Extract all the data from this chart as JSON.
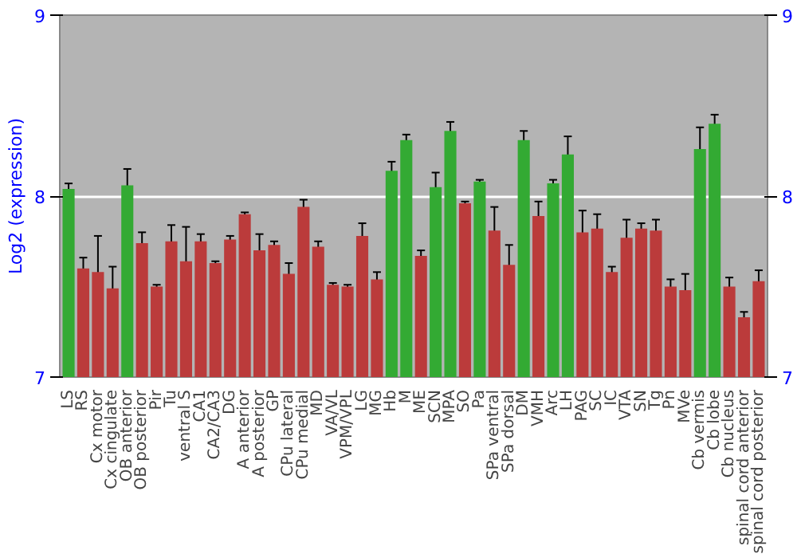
{
  "chart_data": {
    "type": "bar",
    "ylabel": "Log2 (expression)",
    "categories": [
      "LS",
      "RS",
      "Cx motor",
      "Cx cingulate",
      "OB anterior",
      "OB posterior",
      "Pir",
      "Tu",
      "ventral S",
      "CA1",
      "CA2/CA3",
      "DG",
      "A anterior",
      "A posterior",
      "GP",
      "CPu lateral",
      "CPu medial",
      "MD",
      "VA/VL",
      "VPM/VPL",
      "LG",
      "MG",
      "Hb",
      "M",
      "ME",
      "SCN",
      "MPA",
      "SO",
      "Pa",
      "SPa ventral",
      "SPa dorsal",
      "DM",
      "VMH",
      "Arc",
      "LH",
      "PAG",
      "SC",
      "IC",
      "VTA",
      "SN",
      "Tg",
      "Pn",
      "MVe",
      "Cb vermis",
      "Cb lobe",
      "Cb nucleus",
      "spinal cord anterior",
      "spinal cord posterior"
    ],
    "values": [
      8.04,
      7.6,
      7.58,
      7.49,
      8.06,
      7.74,
      7.5,
      7.75,
      7.64,
      7.75,
      7.63,
      7.76,
      7.9,
      7.7,
      7.73,
      7.57,
      7.94,
      7.72,
      7.51,
      7.5,
      7.78,
      7.54,
      8.14,
      8.31,
      7.67,
      8.05,
      8.36,
      7.96,
      8.08,
      7.81,
      7.62,
      8.31,
      7.89,
      8.07,
      8.23,
      7.8,
      7.82,
      7.58,
      7.77,
      7.82,
      7.81,
      7.5,
      7.48,
      8.26,
      8.4,
      7.5,
      7.33,
      7.53
    ],
    "errors": [
      0.03,
      0.06,
      0.2,
      0.12,
      0.09,
      0.06,
      0.01,
      0.09,
      0.19,
      0.04,
      0.01,
      0.02,
      0.01,
      0.09,
      0.02,
      0.06,
      0.04,
      0.03,
      0.01,
      0.01,
      0.07,
      0.04,
      0.05,
      0.03,
      0.03,
      0.08,
      0.05,
      0.01,
      0.01,
      0.13,
      0.11,
      0.05,
      0.08,
      0.02,
      0.1,
      0.12,
      0.08,
      0.03,
      0.1,
      0.03,
      0.06,
      0.04,
      0.09,
      0.12,
      0.05,
      0.05,
      0.03,
      0.06
    ],
    "colors": [
      "#33aa33",
      "#bb3b3b",
      "#bb3b3b",
      "#bb3b3b",
      "#33aa33",
      "#bb3b3b",
      "#bb3b3b",
      "#bb3b3b",
      "#bb3b3b",
      "#bb3b3b",
      "#bb3b3b",
      "#bb3b3b",
      "#bb3b3b",
      "#bb3b3b",
      "#bb3b3b",
      "#bb3b3b",
      "#bb3b3b",
      "#bb3b3b",
      "#bb3b3b",
      "#bb3b3b",
      "#bb3b3b",
      "#bb3b3b",
      "#33aa33",
      "#33aa33",
      "#bb3b3b",
      "#33aa33",
      "#33aa33",
      "#bb3b3b",
      "#33aa33",
      "#bb3b3b",
      "#bb3b3b",
      "#33aa33",
      "#bb3b3b",
      "#33aa33",
      "#33aa33",
      "#bb3b3b",
      "#bb3b3b",
      "#bb3b3b",
      "#bb3b3b",
      "#bb3b3b",
      "#bb3b3b",
      "#bb3b3b",
      "#bb3b3b",
      "#33aa33",
      "#33aa33",
      "#bb3b3b",
      "#bb3b3b",
      "#bb3b3b"
    ],
    "ylim": [
      7,
      9
    ],
    "yticks": [
      7,
      8,
      9
    ],
    "y2lim": [
      7,
      9
    ],
    "y2ticks": [
      7,
      8,
      9
    ],
    "grid": "y"
  }
}
